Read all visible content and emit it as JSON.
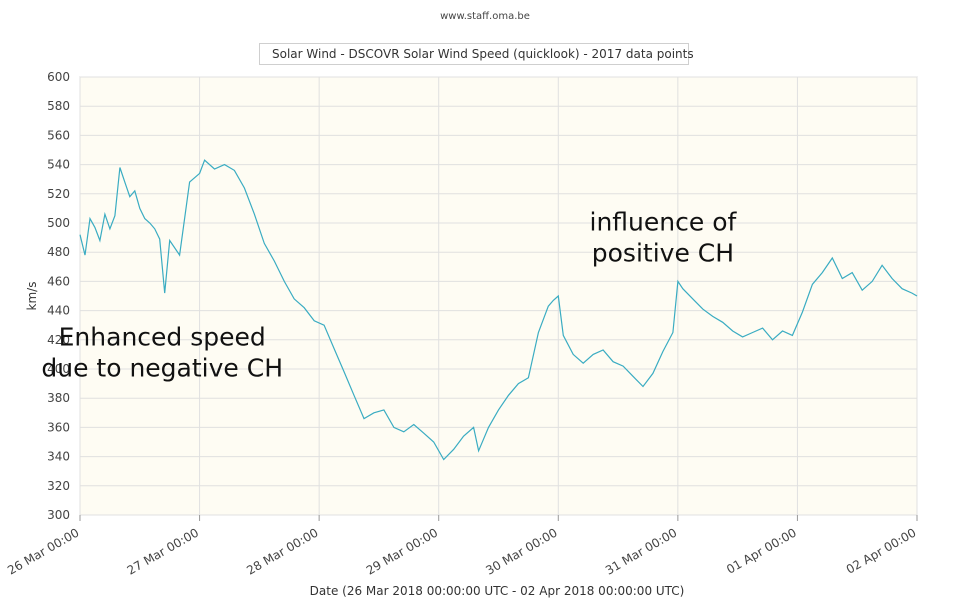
{
  "source_text": "www.staff.oma.be",
  "legend_label": "Solar Wind - DSCOVR Solar Wind Speed (quicklook) - 2017 data points",
  "colors": {
    "series": "#3aacc2",
    "plot_bg": "#fefcf3",
    "grid": "#e0e0e0"
  },
  "chart_data": {
    "type": "line",
    "xlabel": "Date (26 Mar 2018 00:00:00 UTC - 02 Apr 2018 00:00:00 UTC)",
    "ylabel": "km/s",
    "ylim": [
      300,
      600
    ],
    "xlim": [
      "2018-03-26 00:00",
      "2018-04-02 00:00"
    ],
    "yticks": [
      300,
      320,
      340,
      360,
      380,
      400,
      420,
      440,
      460,
      480,
      500,
      520,
      540,
      560,
      580,
      600
    ],
    "xticks": [
      "26 Mar 00:00",
      "27 Mar 00:00",
      "28 Mar 00:00",
      "29 Mar 00:00",
      "30 Mar 00:00",
      "31 Mar 00:00",
      "01 Apr 00:00",
      "02 Apr 00:00"
    ],
    "grid": true,
    "legend_position": "top-center",
    "annotations": [
      {
        "lines": [
          "Enhanced speed",
          "due to negative CH"
        ],
        "x": "2018-03-26 16:30",
        "y": 416
      },
      {
        "lines": [
          "influence of",
          "positive CH"
        ],
        "x": "2018-03-30 21:00",
        "y": 495
      }
    ],
    "series": [
      {
        "name": "Solar Wind - DSCOVR Solar Wind Speed (quicklook)",
        "x": [
          "2018-03-26 00:00",
          "2018-03-26 01:00",
          "2018-03-26 02:00",
          "2018-03-26 03:00",
          "2018-03-26 04:00",
          "2018-03-26 05:00",
          "2018-03-26 06:00",
          "2018-03-26 07:00",
          "2018-03-26 08:00",
          "2018-03-26 09:00",
          "2018-03-26 10:00",
          "2018-03-26 11:00",
          "2018-03-26 12:00",
          "2018-03-26 13:00",
          "2018-03-26 14:00",
          "2018-03-26 15:00",
          "2018-03-26 16:00",
          "2018-03-26 17:00",
          "2018-03-26 18:00",
          "2018-03-26 20:00",
          "2018-03-26 22:00",
          "2018-03-27 00:00",
          "2018-03-27 01:00",
          "2018-03-27 03:00",
          "2018-03-27 05:00",
          "2018-03-27 06:00",
          "2018-03-27 07:00",
          "2018-03-27 09:00",
          "2018-03-27 11:00",
          "2018-03-27 13:00",
          "2018-03-27 15:00",
          "2018-03-27 17:00",
          "2018-03-27 19:00",
          "2018-03-27 21:00",
          "2018-03-27 23:00",
          "2018-03-28 01:00",
          "2018-03-28 03:00",
          "2018-03-28 05:00",
          "2018-03-28 07:00",
          "2018-03-28 09:00",
          "2018-03-28 11:00",
          "2018-03-28 13:00",
          "2018-03-28 15:00",
          "2018-03-28 17:00",
          "2018-03-28 19:00",
          "2018-03-28 21:00",
          "2018-03-28 23:00",
          "2018-03-29 01:00",
          "2018-03-29 03:00",
          "2018-03-29 05:00",
          "2018-03-29 07:00",
          "2018-03-29 08:00",
          "2018-03-29 10:00",
          "2018-03-29 12:00",
          "2018-03-29 14:00",
          "2018-03-29 16:00",
          "2018-03-29 18:00",
          "2018-03-29 20:00",
          "2018-03-29 22:00",
          "2018-03-29 23:00",
          "2018-03-30 00:00",
          "2018-03-30 01:00",
          "2018-03-30 03:00",
          "2018-03-30 05:00",
          "2018-03-30 07:00",
          "2018-03-30 09:00",
          "2018-03-30 11:00",
          "2018-03-30 13:00",
          "2018-03-30 15:00",
          "2018-03-30 17:00",
          "2018-03-30 19:00",
          "2018-03-30 21:00",
          "2018-03-30 23:00",
          "2018-03-31 00:00",
          "2018-03-31 01:00",
          "2018-03-31 03:00",
          "2018-03-31 05:00",
          "2018-03-31 07:00",
          "2018-03-31 09:00",
          "2018-03-31 11:00",
          "2018-03-31 13:00",
          "2018-03-31 15:00",
          "2018-03-31 17:00",
          "2018-03-31 19:00",
          "2018-03-31 21:00",
          "2018-03-31 23:00",
          "2018-04-01 01:00",
          "2018-04-01 03:00",
          "2018-04-01 05:00",
          "2018-04-01 07:00",
          "2018-04-01 09:00",
          "2018-04-01 11:00",
          "2018-04-01 13:00",
          "2018-04-01 15:00",
          "2018-04-01 17:00",
          "2018-04-01 19:00",
          "2018-04-01 21:00",
          "2018-04-01 23:00",
          "2018-04-02 00:00"
        ],
        "values": [
          492,
          478,
          503,
          497,
          488,
          506,
          496,
          505,
          538,
          528,
          518,
          522,
          510,
          503,
          500,
          496,
          489,
          452,
          488,
          478,
          528,
          534,
          543,
          537,
          540,
          538,
          536,
          524,
          506,
          486,
          474,
          460,
          448,
          442,
          433,
          430,
          414,
          398,
          382,
          366,
          370,
          372,
          360,
          357,
          362,
          356,
          350,
          338,
          345,
          354,
          360,
          344,
          360,
          372,
          382,
          390,
          394,
          425,
          443,
          447,
          450,
          423,
          410,
          404,
          410,
          413,
          405,
          402,
          395,
          388,
          397,
          412,
          425,
          460,
          455,
          448,
          441,
          436,
          432,
          426,
          422,
          425,
          428,
          420,
          426,
          423,
          439,
          458,
          466,
          476,
          462,
          466,
          454,
          460,
          471,
          462,
          455,
          452,
          450
        ]
      }
    ]
  }
}
